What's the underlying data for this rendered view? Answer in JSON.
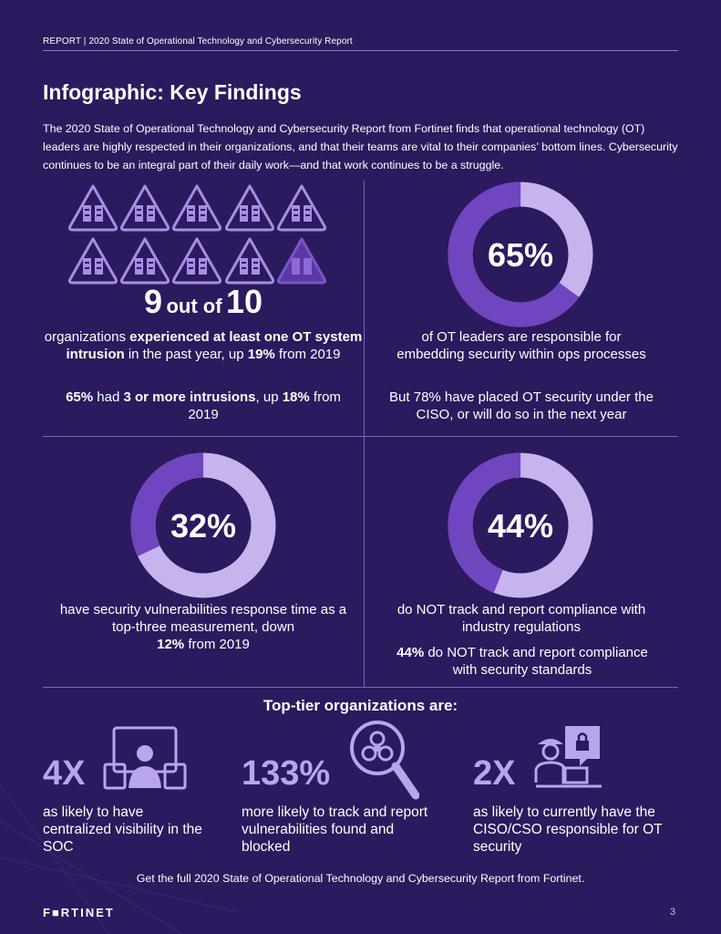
{
  "header": {
    "text": "REPORT  |  2020 State of Operational Technology and Cybersecurity Report"
  },
  "title": "Infographic: Key Findings",
  "intro": "The 2020 State of Operational Technology and Cybersecurity Report from Fortinet finds that operational technology (OT) leaders are highly respected in their organizations, and that their teams are vital to their companies’ bottom lines. Cybersecurity continues to be an integral part of their daily work—and that work continues to be a struggle.",
  "stat_intrusions": {
    "num": "9",
    "of": "out of",
    "den": "10",
    "line1_pre": "organizations ",
    "line1_bold": "experienced at least one OT system intrusion",
    "line1_post": " in the past year, up ",
    "line1_pct": "19%",
    "line1_end": " from 2019",
    "line2_pct": "65%",
    "line2_mid": " had ",
    "line2_bold": "3 or more intrusions",
    "line2_post": ", up ",
    "line2_pct2": "18%",
    "line2_end": " from 2019"
  },
  "donut_65": {
    "label": "65%",
    "value": 0.65,
    "text": "of OT leaders are responsible for embedding security within ops processes",
    "text2": "But 78% have placed OT security under the CISO, or will do so in the next year"
  },
  "donut_32": {
    "label": "32%",
    "value": 0.32,
    "text": "have security vulnerabilities response time as a top-three measurement, down",
    "pct": "12%",
    "end": " from 2019"
  },
  "donut_44": {
    "label": "44%",
    "value": 0.44,
    "text": "do NOT track and report compliance with industry regulations",
    "pct": "44%",
    "text2": " do NOT track and report compliance with security standards"
  },
  "toptier": {
    "heading": "Top-tier organizations are:",
    "items": [
      {
        "stat": "4X",
        "text": "as likely to have centralized visibility in the SOC",
        "icon": "monitor-person-icon"
      },
      {
        "stat": "133%",
        "text": "more likely to track and report vulnerabilities found and blocked",
        "icon": "biohazard-magnifier-icon"
      },
      {
        "stat": "2X",
        "text": "as likely to currently have the CISO/CSO responsible for OT security",
        "icon": "worker-lock-icon"
      }
    ]
  },
  "footer_note": "Get the full 2020 State of Operational Technology and Cybersecurity Report from Fortinet.",
  "logo": "F■RTINET",
  "page_number": "3",
  "colors": {
    "background": "#2b1a5e",
    "ring_light": "#c7b3ee",
    "ring_dark": "#6f45c0",
    "accent": "#b9a4ee"
  }
}
